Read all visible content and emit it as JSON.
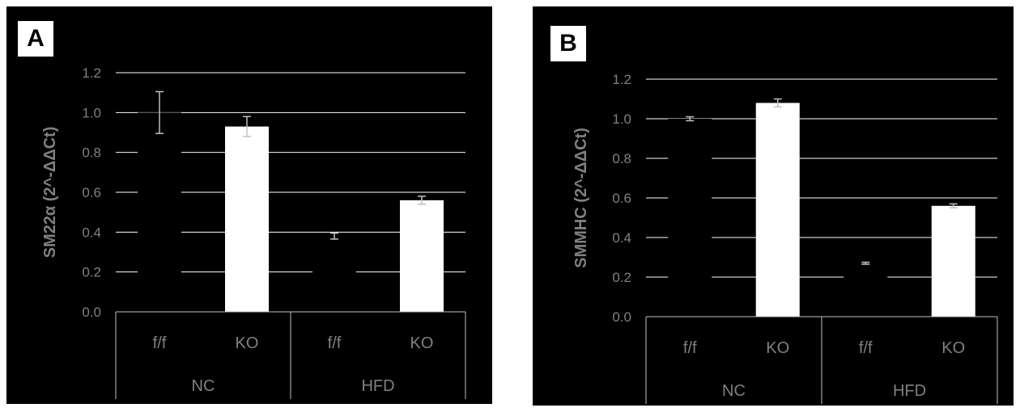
{
  "colors": {
    "background": "#000000",
    "bar": "#ffffff",
    "text": "#808080",
    "grid": "#ffffff"
  },
  "chart_data": [
    {
      "panel_label": "A",
      "type": "bar",
      "ylabel": "SM22α (2^-ΔΔCt)",
      "ylim": [
        0,
        1.2
      ],
      "yticks": [
        "0.0",
        "0.2",
        "0.4",
        "0.6",
        "0.8",
        "1.0",
        "1.2"
      ],
      "categories": [
        "f/f",
        "KO",
        "f/f",
        "KO"
      ],
      "groups": [
        "NC",
        "HFD"
      ],
      "values": [
        1.0,
        0.93,
        0.38,
        0.56
      ],
      "errors": [
        0.105,
        0.05,
        0.015,
        0.02
      ],
      "bar_colors": [
        "#000000",
        "#ffffff",
        "#000000",
        "#ffffff"
      ],
      "grid": true
    },
    {
      "panel_label": "B",
      "type": "bar",
      "ylabel": "SMMHC (2^-ΔΔCt)",
      "ylim": [
        0,
        1.2
      ],
      "yticks": [
        "0.0",
        "0.2",
        "0.4",
        "0.6",
        "0.8",
        "1.0",
        "1.2"
      ],
      "categories": [
        "f/f",
        "KO",
        "f/f",
        "KO"
      ],
      "groups": [
        "NC",
        "HFD"
      ],
      "values": [
        1.0,
        1.08,
        0.27,
        0.56
      ],
      "errors": [
        0.01,
        0.02,
        0.005,
        0.01
      ],
      "bar_colors": [
        "#000000",
        "#ffffff",
        "#000000",
        "#ffffff"
      ],
      "grid": true
    }
  ]
}
